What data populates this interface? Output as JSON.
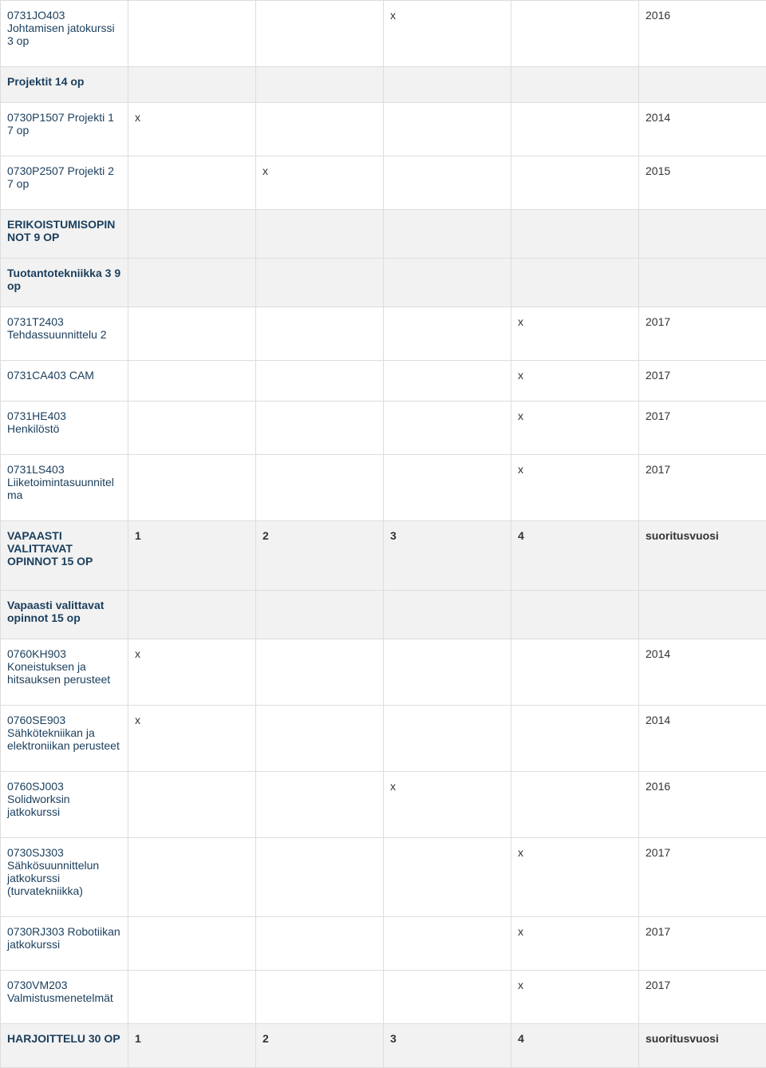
{
  "columns": {
    "h1": "1",
    "h2": "2",
    "h3": "3",
    "h4": "4",
    "h5": "suoritusvuosi"
  },
  "rows": [
    {
      "type": "data",
      "name": "0731JO403 Johtamisen jatokurssi 3 op",
      "c1": "",
      "c2": "",
      "c3": "x",
      "c4": "",
      "c5": "2016",
      "label_override": "0731JO403 Johtamisen jatkokurssi 3 op"
    },
    {
      "type": "section",
      "name": "Projektit 14 op"
    },
    {
      "type": "data",
      "name": "0730P1507 Projekti 1 7 op",
      "c1": "x",
      "c2": "",
      "c3": "",
      "c4": "",
      "c5": "2014"
    },
    {
      "type": "data",
      "name": "0730P2507 Projekti 2 7 op",
      "c1": "",
      "c2": "x",
      "c3": "",
      "c4": "",
      "c5": "2015"
    },
    {
      "type": "section",
      "name": "ERIKOISTUMISOPINNOT 9 OP"
    },
    {
      "type": "section",
      "name": "Tuotantotekniikka 3 9 op"
    },
    {
      "type": "data",
      "name": "0731T2403 Tehdassuunnittelu 2",
      "c1": "",
      "c2": "",
      "c3": "",
      "c4": "x",
      "c5": "2017"
    },
    {
      "type": "data",
      "name": "0731CA403 CAM",
      "c1": "",
      "c2": "",
      "c3": "",
      "c4": "x",
      "c5": "2017"
    },
    {
      "type": "data",
      "name": "0731HE403 Henkilöstö",
      "c1": "",
      "c2": "",
      "c3": "",
      "c4": "x",
      "c5": "2017"
    },
    {
      "type": "data",
      "name": "0731LS403 Liiketoimintasuunnitelma",
      "c1": "",
      "c2": "",
      "c3": "",
      "c4": "x",
      "c5": "2017"
    },
    {
      "type": "header",
      "name": "VAPAASTI VALITTAVAT OPINNOT 15 OP"
    },
    {
      "type": "section",
      "name": "Vapaasti valittavat opinnot 15 op"
    },
    {
      "type": "data",
      "name": "0760KH903 Koneistuksen ja hitsauksen perusteet",
      "c1": "x",
      "c2": "",
      "c3": "",
      "c4": "",
      "c5": "2014"
    },
    {
      "type": "data",
      "name": "0760SE903 Sähkötekniikan ja elektroniikan perusteet",
      "c1": "x",
      "c2": "",
      "c3": "",
      "c4": "",
      "c5": "2014"
    },
    {
      "type": "data",
      "name": "0760SJ003 Solidworksin jatkokurssi",
      "c1": "",
      "c2": "",
      "c3": "x",
      "c4": "",
      "c5": "2016"
    },
    {
      "type": "data",
      "name": "0730SJ303 Sähkösuunnittelun jatkokurssi (turvatekniikka)",
      "c1": "",
      "c2": "",
      "c3": "",
      "c4": "x",
      "c5": "2017"
    },
    {
      "type": "data",
      "name": "0730RJ303 Robotiikan jatkokurssi",
      "c1": "",
      "c2": "",
      "c3": "",
      "c4": "x",
      "c5": "2017"
    },
    {
      "type": "data",
      "name": "0730VM203 Valmistusmenetelmät",
      "c1": "",
      "c2": "",
      "c3": "",
      "c4": "x",
      "c5": "2017"
    },
    {
      "type": "header",
      "name": "HARJOITTELU 30 OP"
    }
  ]
}
